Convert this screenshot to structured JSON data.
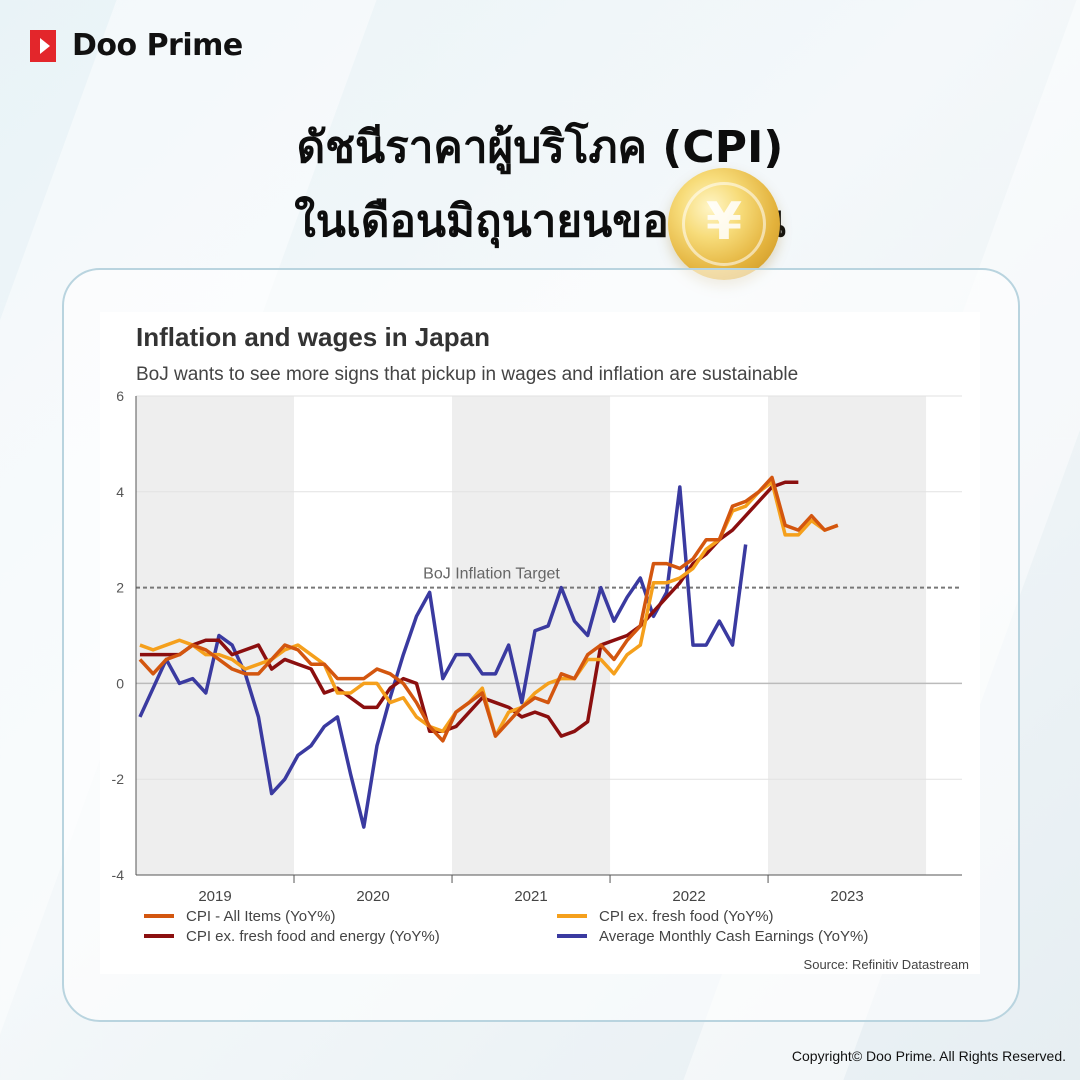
{
  "brand": {
    "name": "Doo Prime",
    "color": "#e3262b"
  },
  "headline": {
    "line1": "ดัชนีราคาผู้บริโภค (CPI)",
    "line2": "ในเดือนมิถุนายนของญี่ปุ่น"
  },
  "coin_icon": "yen-coin-icon",
  "copyright": "Copyright© Doo Prime. All Rights Reserved.",
  "chart_data": {
    "type": "line",
    "title": "Inflation and wages in Japan",
    "subtitle": "BoJ wants to see more signs that pickup in wages and inflation are sustainable",
    "source": "Source: Refinitiv Datastream",
    "ylim": [
      -4,
      6
    ],
    "yticks": [
      "6",
      "4",
      "2",
      "0",
      "-2",
      "-4"
    ],
    "x_start": "2019-01",
    "x_end": "2023-06",
    "year_labels": [
      "2019",
      "2020",
      "2021",
      "2022",
      "2023"
    ],
    "shaded_years": [
      "2019",
      "2021",
      "2023"
    ],
    "reference_line": {
      "label": "BoJ Inflation Target",
      "value": 2
    },
    "grid": true,
    "legend_position": "bottom",
    "series": [
      {
        "name": "CPI - All Items (YoY%)",
        "color": "#d3560f",
        "values": [
          0.5,
          0.2,
          0.5,
          0.6,
          0.8,
          0.7,
          0.5,
          0.3,
          0.2,
          0.2,
          0.5,
          0.8,
          0.7,
          0.4,
          0.4,
          0.1,
          0.1,
          0.1,
          0.3,
          0.2,
          0.0,
          -0.4,
          -0.9,
          -1.2,
          -0.6,
          -0.4,
          -0.2,
          -1.1,
          -0.8,
          -0.5,
          -0.3,
          -0.4,
          0.2,
          0.1,
          0.6,
          0.8,
          0.5,
          0.9,
          1.2,
          2.5,
          2.5,
          2.4,
          2.6,
          3.0,
          3.0,
          3.7,
          3.8,
          4.0,
          4.3,
          3.3,
          3.2,
          3.5,
          3.2,
          3.3
        ]
      },
      {
        "name": "CPI ex. fresh food (YoY%)",
        "color": "#f5a01c",
        "values": [
          0.8,
          0.7,
          0.8,
          0.9,
          0.8,
          0.6,
          0.6,
          0.5,
          0.3,
          0.4,
          0.5,
          0.7,
          0.8,
          0.6,
          0.4,
          -0.2,
          -0.2,
          0.0,
          0.0,
          -0.4,
          -0.3,
          -0.7,
          -0.9,
          -1.0,
          -0.6,
          -0.4,
          -0.1,
          -1.1,
          -0.6,
          -0.5,
          -0.2,
          0.0,
          0.1,
          0.1,
          0.5,
          0.5,
          0.2,
          0.6,
          0.8,
          2.1,
          2.1,
          2.2,
          2.4,
          2.8,
          3.0,
          3.6,
          3.7,
          4.0,
          4.2,
          3.1,
          3.1,
          3.4,
          3.2,
          3.3
        ]
      },
      {
        "name": "CPI ex. fresh food and energy (YoY%)",
        "color": "#8b0f0f",
        "values": [
          0.6,
          0.6,
          0.6,
          0.6,
          0.8,
          0.9,
          0.9,
          0.6,
          0.7,
          0.8,
          0.3,
          0.5,
          0.4,
          0.3,
          -0.2,
          -0.1,
          -0.3,
          -0.5,
          -0.5,
          -0.1,
          0.1,
          0.0,
          -1.0,
          -1.0,
          -0.9,
          -0.6,
          -0.3,
          -0.4,
          -0.5,
          -0.7,
          -0.6,
          -0.7,
          -1.1,
          -1.0,
          -0.8,
          0.8,
          0.9,
          1.0,
          1.2,
          1.5,
          1.8,
          2.1,
          2.5,
          2.7,
          3.0,
          3.2,
          3.5,
          3.8,
          4.1,
          4.2,
          4.2
        ]
      },
      {
        "name": "Average Monthly Cash Earnings (YoY%)",
        "color": "#3a3aa0",
        "values": [
          -0.7,
          -0.1,
          0.5,
          0.0,
          0.1,
          -0.2,
          1.0,
          0.8,
          0.2,
          -0.7,
          -2.3,
          -2.0,
          -1.5,
          -1.3,
          -0.9,
          -0.7,
          -1.9,
          -3.0,
          -1.3,
          -0.3,
          0.6,
          1.4,
          1.9,
          0.1,
          0.6,
          0.6,
          0.2,
          0.2,
          0.8,
          -0.4,
          1.1,
          1.2,
          2.0,
          1.3,
          1.0,
          2.0,
          1.3,
          1.8,
          2.2,
          1.4,
          1.9,
          4.1,
          0.8,
          0.8,
          1.3,
          0.8,
          2.9
        ]
      }
    ]
  }
}
